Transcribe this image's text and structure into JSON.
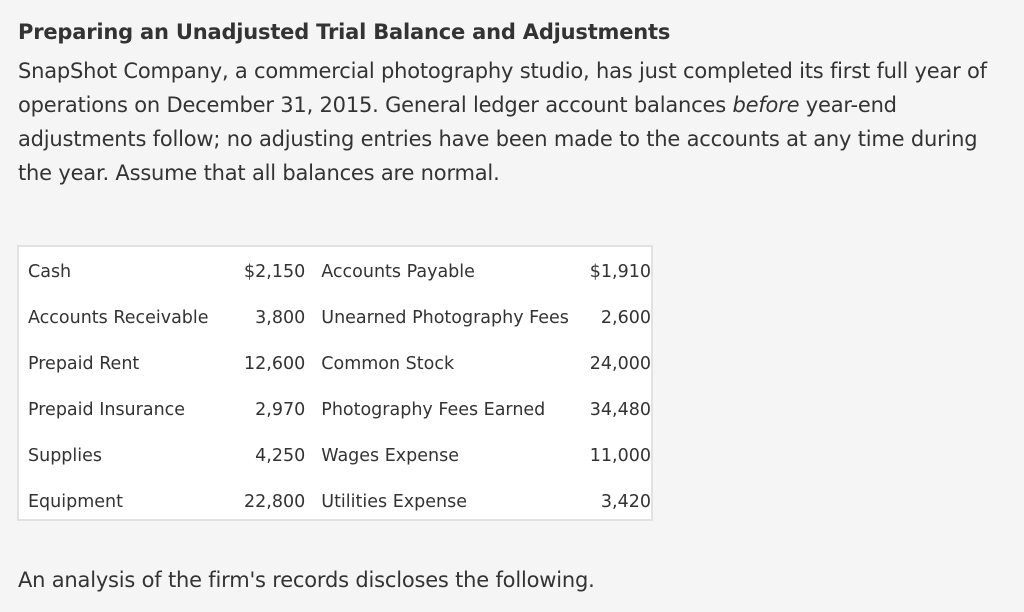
{
  "heading": "Preparing an Unadjusted Trial Balance and Adjustments",
  "intro": {
    "part1": "SnapShot Company, a commercial photography studio, has just completed its first full year of operations on December 31, 2015. General ledger account balances ",
    "emphasis": "before",
    "part2": " year-end adjustments follow; no adjusting entries have been made to the accounts at any time during the year. Assume that all balances are normal."
  },
  "accounts": [
    {
      "left_name": "Cash",
      "left_amount": "$2,150",
      "right_name": "Accounts Payable",
      "right_amount": "$1,910"
    },
    {
      "left_name": "Accounts Receivable",
      "left_amount": "3,800",
      "right_name": "Unearned Photography Fees",
      "right_amount": "2,600"
    },
    {
      "left_name": "Prepaid Rent",
      "left_amount": "12,600",
      "right_name": "Common Stock",
      "right_amount": "24,000"
    },
    {
      "left_name": "Prepaid Insurance",
      "left_amount": "2,970",
      "right_name": "Photography Fees Earned",
      "right_amount": "34,480"
    },
    {
      "left_name": "Supplies",
      "left_amount": "4,250",
      "right_name": "Wages Expense",
      "right_amount": "11,000"
    },
    {
      "left_name": "Equipment",
      "left_amount": "22,800",
      "right_name": "Utilities Expense",
      "right_amount": "3,420"
    }
  ],
  "footer": "An analysis of the firm's records discloses the following."
}
